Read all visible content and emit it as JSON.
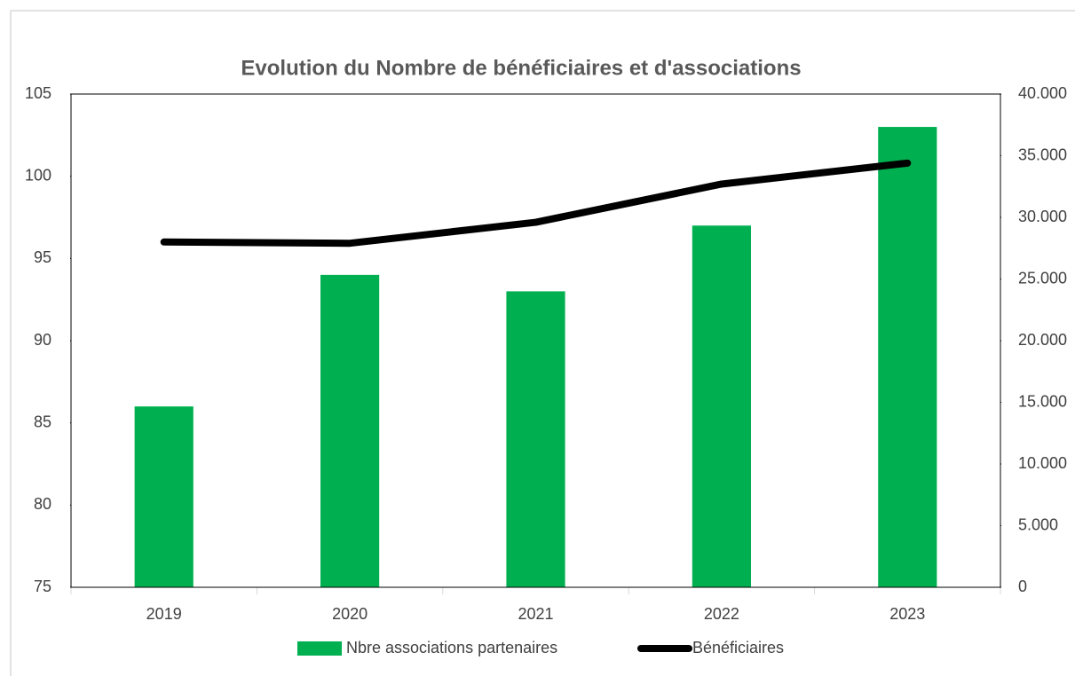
{
  "chart_data": {
    "type": "bar+line",
    "title": "Evolution du Nombre de bénéficiaires et d'associations",
    "categories": [
      "2019",
      "2020",
      "2021",
      "2022",
      "2023"
    ],
    "series": [
      {
        "name": "Nbre associations partenaires",
        "type": "bar",
        "color": "#00b050",
        "values": [
          86,
          94,
          93,
          97,
          103
        ]
      },
      {
        "name": "Bénéficiaires",
        "type": "line",
        "color": "#000000",
        "axis": "y2",
        "values": [
          28000,
          27900,
          29600,
          32700,
          34400
        ]
      }
    ],
    "ylim": [
      75,
      105
    ],
    "yticks": [
      75,
      80,
      85,
      90,
      95,
      100,
      105
    ],
    "y2lim": [
      0,
      40000
    ],
    "y2ticks": [
      0,
      {
        "value": 5000,
        "label": "5.000"
      },
      {
        "value": 10000,
        "label": "10.000"
      },
      {
        "value": 15000,
        "label": "15.000"
      },
      {
        "value": 20000,
        "label": "20.000"
      },
      {
        "value": 25000,
        "label": "25.000"
      },
      {
        "value": 30000,
        "label": "30.000"
      },
      {
        "value": 35000,
        "label": "35.000"
      },
      {
        "value": 40000,
        "label": "40.000"
      }
    ],
    "legend": "bottom"
  }
}
